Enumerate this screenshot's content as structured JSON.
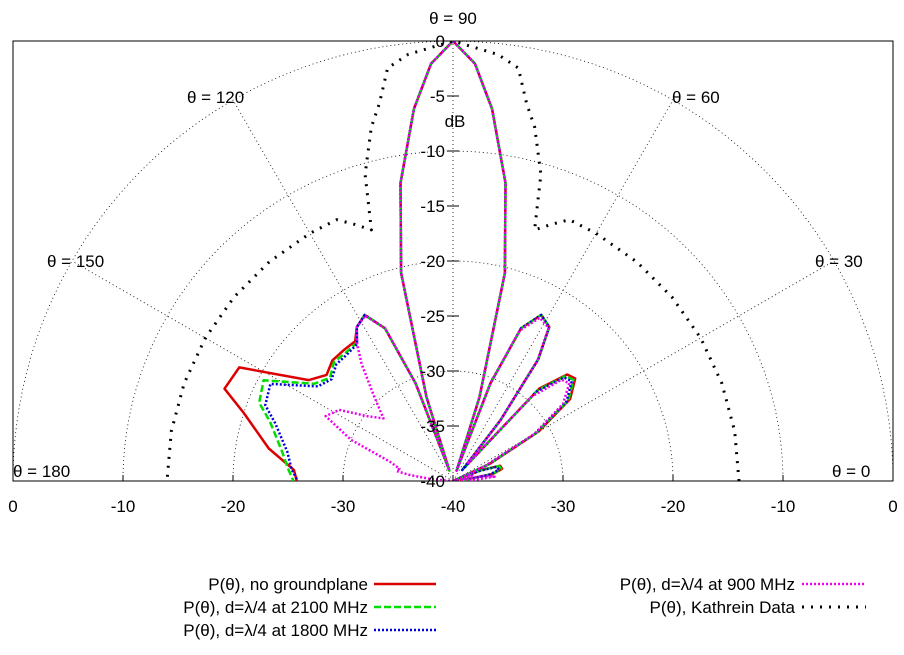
{
  "chart_data": {
    "type": "polar",
    "title": "",
    "r_unit": "dB",
    "r_range": [
      -40,
      0
    ],
    "r_ticks": [
      "0",
      "-5",
      "-10",
      "-15",
      "-20",
      "-25",
      "-30",
      "-35",
      "-40"
    ],
    "x_tick_labels": [
      "0",
      "-10",
      "-20",
      "-30",
      "-40",
      "-30",
      "-20",
      "-10",
      "0"
    ],
    "angle_labels": [
      "θ = 180",
      "θ = 150",
      "θ = 120",
      "θ = 90",
      "θ = 60",
      "θ = 30",
      "θ = 0"
    ],
    "theta_range_deg": [
      0,
      180
    ],
    "grid": true,
    "legend_position": "bottom",
    "series": [
      {
        "name": "P(θ), no groundplane",
        "color": "#dd0000",
        "dash": "solid",
        "points": [
          [
            0,
            -40
          ],
          [
            5,
            -39.0
          ],
          [
            10,
            -36.3
          ],
          [
            14,
            -35.4
          ],
          [
            18,
            -35.5
          ],
          [
            21,
            -37.2
          ],
          [
            23,
            -39.8
          ],
          [
            25,
            -36.3
          ],
          [
            30,
            -31.0
          ],
          [
            35,
            -27.0
          ],
          [
            40,
            -25.5
          ],
          [
            43,
            -25.8
          ],
          [
            47,
            -28.5
          ],
          [
            50,
            -38.5
          ],
          [
            52,
            -33.0
          ],
          [
            55,
            -26.5
          ],
          [
            58,
            -23.5
          ],
          [
            62,
            -22.9
          ],
          [
            66,
            -24.8
          ],
          [
            69,
            -30.5
          ],
          [
            71,
            -39.0
          ],
          [
            72.5,
            -32.0
          ],
          [
            76,
            -20.5
          ],
          [
            80,
            -12.5
          ],
          [
            84,
            -6.0
          ],
          [
            87,
            -2.0
          ],
          [
            90,
            0
          ],
          [
            93,
            -2.0
          ],
          [
            96,
            -6.0
          ],
          [
            100,
            -12.5
          ],
          [
            104,
            -20.5
          ],
          [
            107.5,
            -32.0
          ],
          [
            109,
            -39.0
          ],
          [
            111,
            -30.5
          ],
          [
            114,
            -24.8
          ],
          [
            118,
            -22.9
          ],
          [
            122,
            -23.5
          ],
          [
            125,
            -24.5
          ],
          [
            130,
            -24.5
          ],
          [
            135,
            -24.5
          ],
          [
            140,
            -25.0
          ],
          [
            145,
            -24.0
          ],
          [
            152,
            -18.0
          ],
          [
            158,
            -17.6
          ],
          [
            162,
            -20.0
          ],
          [
            170,
            -23.0
          ],
          [
            176,
            -25.5
          ],
          [
            180,
            -25.8
          ]
        ]
      },
      {
        "name": "P(θ), d=λ/4 at 2100 MHz",
        "color": "#00dd00",
        "dash": "dashed",
        "points": [
          [
            0,
            -40
          ],
          [
            5,
            -38.8
          ],
          [
            10,
            -36.4
          ],
          [
            14,
            -35.5
          ],
          [
            18,
            -35.6
          ],
          [
            21,
            -37.3
          ],
          [
            23,
            -39.8
          ],
          [
            25,
            -36.5
          ],
          [
            30,
            -31.2
          ],
          [
            35,
            -27.2
          ],
          [
            40,
            -25.7
          ],
          [
            43,
            -26.0
          ],
          [
            47,
            -28.7
          ],
          [
            50,
            -38.6
          ],
          [
            52,
            -33.0
          ],
          [
            55,
            -26.5
          ],
          [
            58,
            -23.5
          ],
          [
            62,
            -22.9
          ],
          [
            66,
            -24.8
          ],
          [
            69,
            -30.5
          ],
          [
            71,
            -39.0
          ],
          [
            72.5,
            -32.0
          ],
          [
            76,
            -20.5
          ],
          [
            80,
            -12.5
          ],
          [
            84,
            -6.0
          ],
          [
            87,
            -2.0
          ],
          [
            90,
            0
          ],
          [
            93,
            -2.0
          ],
          [
            96,
            -6.0
          ],
          [
            100,
            -12.5
          ],
          [
            104,
            -20.5
          ],
          [
            107.5,
            -32.0
          ],
          [
            109,
            -39.0
          ],
          [
            111,
            -30.5
          ],
          [
            114,
            -24.8
          ],
          [
            118,
            -22.9
          ],
          [
            122,
            -23.5
          ],
          [
            125,
            -24.7
          ],
          [
            130,
            -24.8
          ],
          [
            135,
            -24.7
          ],
          [
            140,
            -25.4
          ],
          [
            145,
            -24.6
          ],
          [
            152,
            -20.5
          ],
          [
            158,
            -21.0
          ],
          [
            162,
            -22.5
          ],
          [
            170,
            -24.2
          ],
          [
            176,
            -25.0
          ],
          [
            180,
            -25.5
          ]
        ]
      },
      {
        "name": "P(θ), d=λ/4 at 1800 MHz",
        "color": "#0000dd",
        "dash": "dotted",
        "points": [
          [
            0,
            -40
          ],
          [
            5,
            -38.6
          ],
          [
            10,
            -36.6
          ],
          [
            14,
            -35.7
          ],
          [
            18,
            -35.8
          ],
          [
            21,
            -37.4
          ],
          [
            23,
            -39.8
          ],
          [
            25,
            -36.7
          ],
          [
            30,
            -31.4
          ],
          [
            35,
            -27.4
          ],
          [
            40,
            -25.9
          ],
          [
            43,
            -26.2
          ],
          [
            47,
            -28.9
          ],
          [
            50,
            -38.7
          ],
          [
            52,
            -33.0
          ],
          [
            55,
            -26.5
          ],
          [
            58,
            -23.5
          ],
          [
            62,
            -22.9
          ],
          [
            66,
            -24.8
          ],
          [
            69,
            -30.5
          ],
          [
            71,
            -39.0
          ],
          [
            72.5,
            -32.0
          ],
          [
            76,
            -20.5
          ],
          [
            80,
            -12.5
          ],
          [
            84,
            -6.0
          ],
          [
            87,
            -2.0
          ],
          [
            90,
            0
          ],
          [
            93,
            -2.0
          ],
          [
            96,
            -6.0
          ],
          [
            100,
            -12.5
          ],
          [
            104,
            -20.5
          ],
          [
            107.5,
            -32.0
          ],
          [
            109,
            -39.0
          ],
          [
            111,
            -30.5
          ],
          [
            114,
            -24.8
          ],
          [
            118,
            -22.9
          ],
          [
            122,
            -23.5
          ],
          [
            125,
            -24.8
          ],
          [
            130,
            -25.0
          ],
          [
            135,
            -25.0
          ],
          [
            140,
            -25.6
          ],
          [
            145,
            -25.0
          ],
          [
            152,
            -21.2
          ],
          [
            158,
            -21.6
          ],
          [
            162,
            -23.0
          ],
          [
            170,
            -24.7
          ],
          [
            176,
            -25.3
          ],
          [
            180,
            -25.9
          ]
        ]
      },
      {
        "name": "P(θ), d=λ/4 at 900 MHz",
        "color": "#ee00ee",
        "dash": "dotted",
        "points": [
          [
            0,
            -40
          ],
          [
            3,
            -38.0
          ],
          [
            6,
            -36.2
          ],
          [
            9,
            -37.0
          ],
          [
            12,
            -39.0
          ],
          [
            16,
            -38.2
          ],
          [
            20,
            -39.6
          ],
          [
            25,
            -36.8
          ],
          [
            30,
            -31.5
          ],
          [
            35,
            -27.8
          ],
          [
            40,
            -26.2
          ],
          [
            43,
            -26.5
          ],
          [
            47,
            -29.5
          ],
          [
            50,
            -38.0
          ],
          [
            52,
            -33.0
          ],
          [
            55,
            -26.6
          ],
          [
            58,
            -23.6
          ],
          [
            62,
            -23.2
          ],
          [
            66,
            -25.0
          ],
          [
            69,
            -30.5
          ],
          [
            71,
            -39.0
          ],
          [
            72.5,
            -32.0
          ],
          [
            76,
            -20.5
          ],
          [
            80,
            -12.5
          ],
          [
            84,
            -6.0
          ],
          [
            87,
            -2.0
          ],
          [
            90,
            0
          ],
          [
            93,
            -2.0
          ],
          [
            96,
            -6.0
          ],
          [
            100,
            -12.5
          ],
          [
            104,
            -20.5
          ],
          [
            107.5,
            -32.0
          ],
          [
            109,
            -39.0
          ],
          [
            111,
            -30.5
          ],
          [
            114,
            -24.8
          ],
          [
            118,
            -23.0
          ],
          [
            122,
            -23.5
          ],
          [
            125,
            -24.8
          ],
          [
            128,
            -26.5
          ],
          [
            133,
            -29.5
          ],
          [
            138,
            -31.5
          ],
          [
            143,
            -30.2
          ],
          [
            148,
            -27.8
          ],
          [
            153,
            -27.0
          ],
          [
            158,
            -30.0
          ],
          [
            163,
            -34.0
          ],
          [
            167,
            -35.0
          ],
          [
            170,
            -34.8
          ],
          [
            172,
            -36.0
          ],
          [
            175,
            -38.0
          ],
          [
            178,
            -39.5
          ],
          [
            180,
            -40
          ]
        ]
      },
      {
        "name": "P(θ), Kathrein Data",
        "color": "#000000",
        "dash": "kathrein",
        "points": [
          [
            0,
            -14
          ],
          [
            10,
            -14
          ],
          [
            20,
            -14
          ],
          [
            30,
            -14
          ],
          [
            40,
            -14
          ],
          [
            50,
            -14
          ],
          [
            60,
            -14
          ],
          [
            66,
            -14
          ],
          [
            69,
            -15
          ],
          [
            72,
            -16
          ],
          [
            74,
            -11
          ],
          [
            77,
            -7
          ],
          [
            79,
            -5
          ],
          [
            81,
            -2
          ],
          [
            84,
            -1
          ],
          [
            90,
            0
          ],
          [
            96,
            -1
          ],
          [
            99,
            -2
          ],
          [
            101,
            -5
          ],
          [
            103,
            -7
          ],
          [
            106,
            -11
          ],
          [
            108,
            -16
          ],
          [
            111,
            -15
          ],
          [
            114,
            -14
          ],
          [
            120,
            -14
          ],
          [
            130,
            -14
          ],
          [
            140,
            -14
          ],
          [
            150,
            -14
          ],
          [
            160,
            -14
          ],
          [
            170,
            -14
          ],
          [
            180,
            -14
          ]
        ]
      }
    ]
  }
}
